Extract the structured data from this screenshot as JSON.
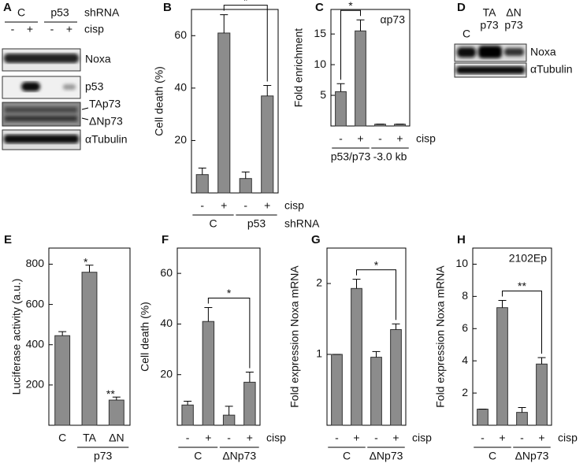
{
  "blots": [
    {
      "panel": "A",
      "columns": [
        [
          "C"
        ],
        [
          "p53"
        ]
      ],
      "column_label": "shRNA",
      "lanes": [
        "-",
        "+",
        "-",
        "+"
      ],
      "lane_label": "cisp",
      "rows": [
        "Noxa",
        "p53",
        "TAp73",
        "ΔNp73",
        "αTubulin"
      ]
    },
    {
      "panel": "D",
      "columns": [
        [
          "C"
        ],
        [
          "TA",
          "p73"
        ],
        [
          "ΔN",
          "p73"
        ]
      ],
      "rows": [
        "Noxa",
        "αTubulin"
      ]
    }
  ],
  "chart_data": [
    {
      "panel": "B",
      "type": "bar",
      "ylabel": "Cell death (%)",
      "categories": [
        "-",
        "+",
        "-",
        "+"
      ],
      "groups": [
        {
          "label": "C",
          "bars": [
            0,
            1
          ]
        },
        {
          "label": "p53",
          "bars": [
            2,
            3
          ]
        }
      ],
      "condition_label": "cisp",
      "group_label": "shRNA",
      "values": [
        7,
        61,
        5.5,
        37
      ],
      "errors": [
        2.5,
        7,
        2.5,
        4
      ],
      "color": "#8c8c8c",
      "ylim": [
        0,
        70
      ],
      "yticks": [
        20,
        40,
        60
      ],
      "significance": [
        {
          "bars": [
            1,
            3
          ],
          "label": "*"
        }
      ]
    },
    {
      "panel": "C",
      "type": "bar",
      "ylabel": "Fold enrichment",
      "annotation": "αp73",
      "categories": [
        "-",
        "+",
        "-",
        "+"
      ],
      "groups": [
        {
          "label": "p53/p73",
          "bars": [
            0,
            1
          ]
        },
        {
          "label": "-3.0 kb",
          "bars": [
            2,
            3
          ]
        }
      ],
      "condition_label": "cisp",
      "values": [
        5.6,
        15.5,
        0.3,
        0.3
      ],
      "errors": [
        1.3,
        1.8,
        0,
        0
      ],
      "color": "#8c8c8c",
      "ylim": [
        0,
        19
      ],
      "yticks": [
        5,
        10,
        15
      ],
      "significance": [
        {
          "bars": [
            0,
            1
          ],
          "label": "*"
        }
      ]
    },
    {
      "panel": "E",
      "type": "bar",
      "ylabel": "Luciferase activity (a.u.)",
      "categories": [
        "C",
        "TA",
        "ΔN"
      ],
      "groups": [
        {
          "label": "p73",
          "bars": [
            1,
            2
          ]
        }
      ],
      "values": [
        445,
        760,
        125
      ],
      "errors": [
        20,
        35,
        15
      ],
      "color": "#8c8c8c",
      "ylim": [
        0,
        880
      ],
      "yticks": [
        200,
        400,
        600,
        800
      ],
      "significance": [
        {
          "bars": [
            1
          ],
          "label": "*"
        },
        {
          "bars": [
            2
          ],
          "label": "**"
        }
      ]
    },
    {
      "panel": "F",
      "type": "bar",
      "ylabel": "Cell death (%)",
      "categories": [
        "-",
        "+",
        "-",
        "+"
      ],
      "groups": [
        {
          "label": "C",
          "bars": [
            0,
            1
          ]
        },
        {
          "label": "ΔNp73",
          "bars": [
            2,
            3
          ]
        }
      ],
      "condition_label": "cisp",
      "values": [
        8,
        41,
        4,
        17
      ],
      "errors": [
        1.5,
        5.5,
        3.5,
        4
      ],
      "color": "#8c8c8c",
      "ylim": [
        0,
        70
      ],
      "yticks": [
        20,
        40,
        60
      ],
      "significance": [
        {
          "bars": [
            1,
            3
          ],
          "label": "*"
        }
      ]
    },
    {
      "panel": "G",
      "type": "bar",
      "ylabel": "Fold expression Noxa mRNA",
      "categories": [
        "-",
        "+",
        "-",
        "+"
      ],
      "groups": [
        {
          "label": "C",
          "bars": [
            0,
            1
          ]
        },
        {
          "label": "ΔNp73",
          "bars": [
            2,
            3
          ]
        }
      ],
      "condition_label": "cisp",
      "values": [
        1,
        1.93,
        0.96,
        1.35
      ],
      "errors": [
        0,
        0.13,
        0.08,
        0.08
      ],
      "color": "#8c8c8c",
      "ylim": [
        0,
        2.5
      ],
      "yticks": [
        1,
        2
      ],
      "significance": [
        {
          "bars": [
            1,
            3
          ],
          "label": "*"
        }
      ]
    },
    {
      "panel": "H",
      "type": "bar",
      "ylabel": "Fold expression Noxa mRNA",
      "annotation": "2102Ep",
      "categories": [
        "-",
        "+",
        "-",
        "+"
      ],
      "groups": [
        {
          "label": "C",
          "bars": [
            0,
            1
          ]
        },
        {
          "label": "ΔNp73",
          "bars": [
            2,
            3
          ]
        }
      ],
      "condition_label": "cisp",
      "values": [
        1,
        7.3,
        0.8,
        3.8
      ],
      "errors": [
        0,
        0.45,
        0.3,
        0.4
      ],
      "color": "#8c8c8c",
      "ylim": [
        0,
        11
      ],
      "yticks": [
        2,
        4,
        6,
        8,
        10
      ],
      "significance": [
        {
          "bars": [
            1,
            3
          ],
          "label": "**"
        }
      ]
    }
  ]
}
